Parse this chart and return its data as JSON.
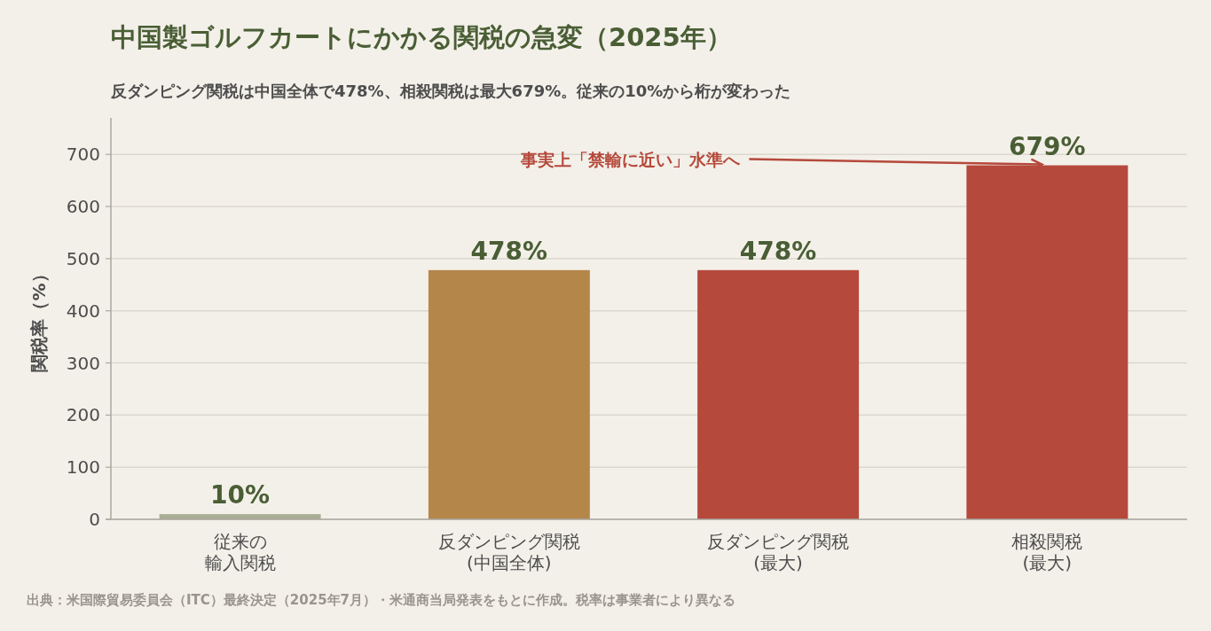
{
  "chart_data": {
    "type": "bar",
    "title": "中国製ゴルフカートにかかる関税の急変（2025年）",
    "subtitle": "反ダンピング関税は中国全体で478%、相殺関税は最大679%。従来の10%から桁が変わった",
    "ylabel": "関税率（%）",
    "categories": [
      "従来の輸入関税",
      "反ダンピング関税(中国全体)",
      "反ダンピング関税(最大)",
      "相殺関税(最大)"
    ],
    "values": [
      10,
      478,
      478,
      679
    ],
    "colors": [
      "#a9ae94",
      "#b5864a",
      "#b5493b",
      "#b5493b"
    ],
    "value_labels": [
      "10%",
      "478%",
      "478%",
      "679%"
    ],
    "ylim": [
      0,
      770
    ],
    "yticks": [
      0,
      100,
      200,
      300,
      400,
      500,
      600,
      700
    ],
    "grid": "y",
    "annotations": [
      {
        "text": "事実上「禁輸に近い」水準へ",
        "x": "相殺関税(最大)",
        "y": 679
      },
      "出典：米国際貿易委員会（ITC）最終決定（2025年7月）・米通商当局発表をもとに作成。税率は事業者により異なる"
    ]
  }
}
